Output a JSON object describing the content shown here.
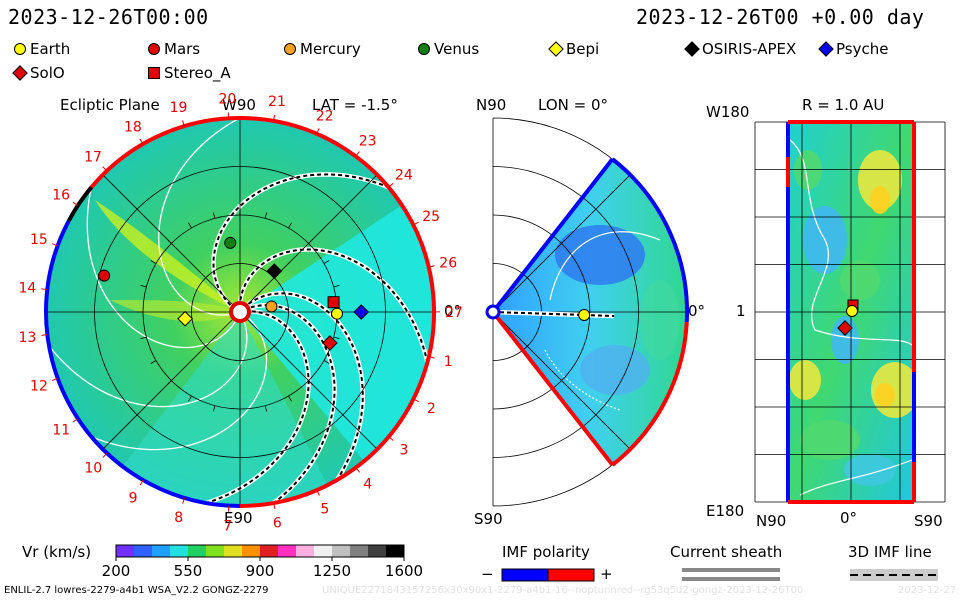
{
  "header": {
    "left_time": "2023-12-26T00:00",
    "right_time": "2023-12-26T00 +0.00 day"
  },
  "legend": {
    "items": [
      {
        "name": "Earth",
        "shape": "circle",
        "color": "#ffff00"
      },
      {
        "name": "Mars",
        "shape": "circle",
        "color": "#e00000"
      },
      {
        "name": "Mercury",
        "shape": "circle",
        "color": "#ffa020"
      },
      {
        "name": "Venus",
        "shape": "circle",
        "color": "#108010"
      },
      {
        "name": "Bepi",
        "shape": "diamond",
        "color": "#ffff00"
      },
      {
        "name": "OSIRIS-APEX",
        "shape": "diamond",
        "color": "#000000"
      },
      {
        "name": "Psyche",
        "shape": "diamond",
        "color": "#0000ee"
      },
      {
        "name": "SolO",
        "shape": "diamond",
        "color": "#e00000"
      },
      {
        "name": "Stereo_A",
        "shape": "square",
        "color": "#e00000"
      }
    ]
  },
  "chart_data": [
    {
      "type": "polar-map",
      "title": "Ecliptic Plane",
      "lat_label": "LAT = -1.5°",
      "top_label": "W90",
      "bottom_label": "E90",
      "right_label": "0°",
      "carrington_labels": [
        "1",
        "2",
        "3",
        "4",
        "5",
        "6",
        "7",
        "8",
        "9",
        "10",
        "11",
        "12",
        "13",
        "14",
        "15",
        "16",
        "17",
        "18",
        "19",
        "20",
        "21",
        "22",
        "23",
        "24",
        "25",
        "26",
        "27"
      ],
      "bodies": [
        {
          "name": "Earth",
          "r_au": 1.0,
          "angle_deg": -1
        },
        {
          "name": "Mars",
          "r_au": 1.45,
          "angle_deg": 165
        },
        {
          "name": "Mercury",
          "r_au": 0.33,
          "angle_deg": 10
        },
        {
          "name": "Venus",
          "r_au": 0.72,
          "angle_deg": 98
        },
        {
          "name": "Bepi",
          "r_au": 0.57,
          "angle_deg": 187
        },
        {
          "name": "OSIRIS-APEX",
          "r_au": 0.55,
          "angle_deg": 50
        },
        {
          "name": "Psyche",
          "r_au": 1.25,
          "angle_deg": 0
        },
        {
          "name": "SolO",
          "r_au": 0.98,
          "angle_deg": -19
        },
        {
          "name": "Stereo_A",
          "r_au": 0.97,
          "angle_deg": 6
        }
      ]
    },
    {
      "type": "meridional-map",
      "top_label": "N90",
      "bottom_label": "S90",
      "lon_label": "LON = 0°",
      "right_label": "0°"
    },
    {
      "type": "shell-map",
      "r_label": "R = 1.0 AU",
      "top_label": "W180",
      "bottom_label": "E180",
      "left_label": "1",
      "x_labels": [
        "N90",
        "0°",
        "S90"
      ]
    },
    {
      "type": "colorbar",
      "title": "Vr (km/s)",
      "ticks": [
        "200",
        "550",
        "900",
        "1250",
        "1600"
      ],
      "range": [
        200,
        1600
      ]
    }
  ],
  "polarity": {
    "title": "IMF polarity",
    "minus": "−",
    "plus": "+",
    "neg_color": "#0000ff",
    "pos_color": "#ff0000"
  },
  "sheath": {
    "title": "Current sheath"
  },
  "imf_line": {
    "title": "3D IMF line"
  },
  "footer": {
    "left": "ENLIL-2.7 lowres-2279-a4b1 WSA_V2.2 GONGZ-2279",
    "center": "UNIQUE2271843157256x30x90x1-2279-a4b1-16--noptunnred--rg53q5d2-gongz-2023-12-26T00",
    "right": "2023-12-27"
  }
}
